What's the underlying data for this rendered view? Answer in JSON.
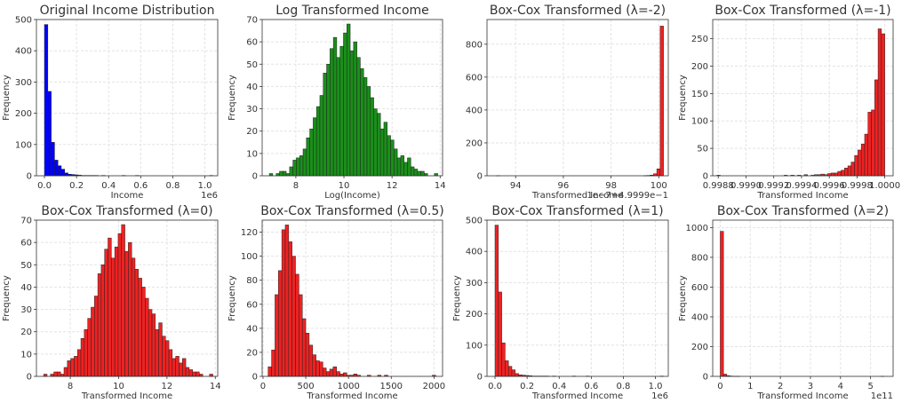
{
  "chart_data": [
    {
      "type": "bar",
      "title": "Original Income Distribution",
      "xlabel": "Income",
      "ylabel": "Frequency",
      "x_offset_label": "1e6",
      "color": "#0000ff",
      "xlim": [
        -0.05,
        1.08
      ],
      "ylim": [
        0,
        500
      ],
      "xticks": [
        {
          "v": 0.0,
          "t": "0.0"
        },
        {
          "v": 0.2,
          "t": "0.2"
        },
        {
          "v": 0.4,
          "t": "0.4"
        },
        {
          "v": 0.6,
          "t": "0.6"
        },
        {
          "v": 0.8,
          "t": "0.8"
        },
        {
          "v": 1.0,
          "t": "1.0"
        }
      ],
      "yticks": [
        {
          "v": 0,
          "t": "0"
        },
        {
          "v": 100,
          "t": "100"
        },
        {
          "v": 200,
          "t": "200"
        },
        {
          "v": 300,
          "t": "300"
        },
        {
          "v": 400,
          "t": "400"
        },
        {
          "v": 500,
          "t": "500"
        }
      ],
      "grid": true,
      "bin_start": 0.0,
      "bin_width": 0.021,
      "counts": [
        484,
        270,
        107,
        50,
        32,
        21,
        9,
        5,
        4,
        3,
        2,
        1,
        1,
        1,
        1,
        1,
        0,
        1,
        0,
        0,
        0,
        0,
        0,
        1,
        0,
        0,
        0,
        1,
        0,
        0,
        0,
        0,
        0,
        0,
        0,
        0,
        0,
        0,
        0,
        0,
        0,
        0,
        0,
        0,
        0,
        0,
        0,
        0,
        0,
        1
      ]
    },
    {
      "type": "bar",
      "title": "Log Transformed Income",
      "xlabel": "Log(Income)",
      "ylabel": "Frequency",
      "color": "#1a8f1a",
      "xlim": [
        6.6,
        14.1
      ],
      "ylim": [
        0,
        70
      ],
      "xticks": [
        {
          "v": 8,
          "t": "8"
        },
        {
          "v": 10,
          "t": "10"
        },
        {
          "v": 12,
          "t": "12"
        },
        {
          "v": 14,
          "t": "14"
        }
      ],
      "yticks": [
        {
          "v": 0,
          "t": "0"
        },
        {
          "v": 10,
          "t": "10"
        },
        {
          "v": 20,
          "t": "20"
        },
        {
          "v": 30,
          "t": "30"
        },
        {
          "v": 40,
          "t": "40"
        },
        {
          "v": 50,
          "t": "50"
        },
        {
          "v": 60,
          "t": "60"
        },
        {
          "v": 70,
          "t": "70"
        }
      ],
      "grid": true,
      "bin_start": 6.9,
      "bin_width": 0.14,
      "counts": [
        1,
        0,
        1,
        2,
        2,
        1,
        4,
        7,
        8,
        9,
        12,
        17,
        21,
        26,
        31,
        36,
        46,
        50,
        57,
        62,
        53,
        58,
        64,
        68,
        56,
        60,
        53,
        48,
        44,
        40,
        35,
        30,
        28,
        21,
        24,
        18,
        16,
        12,
        8,
        9,
        6,
        8,
        4,
        3,
        2,
        2,
        1,
        0,
        0,
        1
      ]
    },
    {
      "type": "bar",
      "title": "Box-Cox Transformed (λ=-2)",
      "xlabel": "Transformed Income",
      "ylabel": "",
      "x_offset_label": "1e−7+4.9999e−1",
      "color": "#ee2222",
      "xlim": [
        92.8,
        100.4
      ],
      "ylim": [
        0,
        950
      ],
      "xticks": [
        {
          "v": 94,
          "t": "94"
        },
        {
          "v": 96,
          "t": "96"
        },
        {
          "v": 98,
          "t": "98"
        },
        {
          "v": 100,
          "t": "100"
        }
      ],
      "yticks": [
        {
          "v": 0,
          "t": "0"
        },
        {
          "v": 200,
          "t": "200"
        },
        {
          "v": 400,
          "t": "400"
        },
        {
          "v": 600,
          "t": "600"
        },
        {
          "v": 800,
          "t": "800"
        }
      ],
      "grid": true,
      "bin_start": 93.2,
      "bin_width": 0.14,
      "counts": [
        1,
        0,
        0,
        0,
        0,
        0,
        0,
        0,
        0,
        0,
        0,
        0,
        0,
        0,
        0,
        0,
        0,
        0,
        0,
        0,
        0,
        0,
        0,
        0,
        0,
        0,
        0,
        0,
        0,
        0,
        0,
        0,
        0,
        0,
        0,
        0,
        0,
        0,
        0,
        0,
        0,
        0,
        0,
        0,
        1,
        2,
        4,
        12,
        42,
        910
      ]
    },
    {
      "type": "bar",
      "title": "Box-Cox Transformed (λ=-1)",
      "xlabel": "Transformed Income",
      "ylabel": "Frequency",
      "color": "#ee2222",
      "xlim": [
        0.99876,
        1.00006
      ],
      "ylim": [
        0,
        285
      ],
      "xticks": [
        {
          "v": 0.9988,
          "t": "0.9988"
        },
        {
          "v": 0.999,
          "t": "0.9990"
        },
        {
          "v": 0.9992,
          "t": "0.9992"
        },
        {
          "v": 0.9994,
          "t": "0.9994"
        },
        {
          "v": 0.9996,
          "t": "0.9996"
        },
        {
          "v": 0.9998,
          "t": "0.9998"
        },
        {
          "v": 1.0,
          "t": "1.0000"
        }
      ],
      "yticks": [
        {
          "v": 0,
          "t": "0"
        },
        {
          "v": 50,
          "t": "50"
        },
        {
          "v": 100,
          "t": "100"
        },
        {
          "v": 150,
          "t": "150"
        },
        {
          "v": 200,
          "t": "200"
        },
        {
          "v": 250,
          "t": "250"
        }
      ],
      "grid": true,
      "bin_start": 0.99879,
      "bin_width": 2.42e-05,
      "counts": [
        1,
        0,
        0,
        0,
        0,
        0,
        0,
        0,
        0,
        0,
        0,
        0,
        0,
        0,
        0,
        0,
        0,
        0,
        0,
        0,
        1,
        0,
        1,
        0,
        1,
        0,
        2,
        0,
        1,
        2,
        2,
        3,
        2,
        4,
        5,
        5,
        8,
        10,
        14,
        18,
        25,
        37,
        47,
        58,
        76,
        116,
        120,
        175,
        268,
        259
      ]
    },
    {
      "type": "bar",
      "title": "Box-Cox Transformed (λ=0)",
      "xlabel": "Transformed Income",
      "ylabel": "Frequency",
      "color": "#ee2222",
      "xlim": [
        6.6,
        14.1
      ],
      "ylim": [
        0,
        70
      ],
      "xticks": [
        {
          "v": 8,
          "t": "8"
        },
        {
          "v": 10,
          "t": "10"
        },
        {
          "v": 12,
          "t": "12"
        },
        {
          "v": 14,
          "t": "14"
        }
      ],
      "yticks": [
        {
          "v": 0,
          "t": "0"
        },
        {
          "v": 10,
          "t": "10"
        },
        {
          "v": 20,
          "t": "20"
        },
        {
          "v": 30,
          "t": "30"
        },
        {
          "v": 40,
          "t": "40"
        },
        {
          "v": 50,
          "t": "50"
        },
        {
          "v": 60,
          "t": "60"
        },
        {
          "v": 70,
          "t": "70"
        }
      ],
      "grid": true,
      "bin_start": 6.9,
      "bin_width": 0.14,
      "counts": [
        1,
        0,
        1,
        2,
        2,
        1,
        4,
        7,
        8,
        9,
        12,
        17,
        21,
        26,
        31,
        36,
        46,
        50,
        57,
        62,
        53,
        58,
        64,
        68,
        56,
        60,
        53,
        48,
        44,
        40,
        35,
        30,
        28,
        21,
        24,
        18,
        16,
        12,
        8,
        9,
        6,
        8,
        4,
        3,
        2,
        2,
        1,
        0,
        0,
        1
      ]
    },
    {
      "type": "bar",
      "title": "Box-Cox Transformed (λ=0.5)",
      "xlabel": "Transformed Income",
      "ylabel": "Frequency",
      "color": "#ee2222",
      "xlim": [
        -10,
        2100
      ],
      "ylim": [
        0,
        130
      ],
      "xticks": [
        {
          "v": 0,
          "t": "0"
        },
        {
          "v": 500,
          "t": "500"
        },
        {
          "v": 1000,
          "t": "1000"
        },
        {
          "v": 1500,
          "t": "1500"
        },
        {
          "v": 2000,
          "t": "2000"
        }
      ],
      "yticks": [
        {
          "v": 0,
          "t": "0"
        },
        {
          "v": 20,
          "t": "20"
        },
        {
          "v": 40,
          "t": "40"
        },
        {
          "v": 60,
          "t": "60"
        },
        {
          "v": 80,
          "t": "80"
        },
        {
          "v": 100,
          "t": "100"
        },
        {
          "v": 120,
          "t": "120"
        }
      ],
      "grid": true,
      "bin_start": 60,
      "bin_width": 40,
      "counts": [
        8,
        22,
        68,
        88,
        122,
        126,
        112,
        100,
        85,
        68,
        48,
        36,
        26,
        18,
        13,
        12,
        7,
        4,
        6,
        8,
        4,
        2,
        3,
        1,
        1,
        2,
        1,
        0,
        0,
        1,
        0,
        0,
        1,
        0,
        1,
        0,
        0,
        0,
        0,
        0,
        0,
        0,
        0,
        0,
        0,
        0,
        0,
        0,
        1
      ]
    },
    {
      "type": "bar",
      "title": "Box-Cox Transformed (λ=1)",
      "xlabel": "Transformed Income",
      "ylabel": "Frequency",
      "x_offset_label": "1e6",
      "color": "#ee2222",
      "xlim": [
        -0.05,
        1.08
      ],
      "ylim": [
        0,
        500
      ],
      "xticks": [
        {
          "v": 0.0,
          "t": "0.0"
        },
        {
          "v": 0.2,
          "t": "0.2"
        },
        {
          "v": 0.4,
          "t": "0.4"
        },
        {
          "v": 0.6,
          "t": "0.6"
        },
        {
          "v": 0.8,
          "t": "0.8"
        },
        {
          "v": 1.0,
          "t": "1.0"
        }
      ],
      "yticks": [
        {
          "v": 0,
          "t": "0"
        },
        {
          "v": 100,
          "t": "100"
        },
        {
          "v": 200,
          "t": "200"
        },
        {
          "v": 300,
          "t": "300"
        },
        {
          "v": 400,
          "t": "400"
        },
        {
          "v": 500,
          "t": "500"
        }
      ],
      "grid": true,
      "bin_start": 0.0,
      "bin_width": 0.021,
      "counts": [
        484,
        270,
        107,
        50,
        32,
        21,
        9,
        5,
        4,
        3,
        2,
        1,
        1,
        1,
        1,
        1,
        0,
        1,
        0,
        0,
        0,
        0,
        0,
        1,
        0,
        0,
        0,
        1,
        0,
        0,
        0,
        0,
        0,
        0,
        0,
        0,
        0,
        0,
        0,
        0,
        0,
        0,
        0,
        0,
        0,
        0,
        0,
        0,
        0,
        1
      ]
    },
    {
      "type": "bar",
      "title": "Box-Cox Transformed (λ=2)",
      "xlabel": "Transformed Income",
      "ylabel": "Frequency",
      "x_offset_label": "1e11",
      "color": "#ee2222",
      "xlim": [
        -0.25,
        5.75
      ],
      "ylim": [
        0,
        1050
      ],
      "xticks": [
        {
          "v": 0,
          "t": "0"
        },
        {
          "v": 1,
          "t": "1"
        },
        {
          "v": 2,
          "t": "2"
        },
        {
          "v": 3,
          "t": "3"
        },
        {
          "v": 4,
          "t": "4"
        },
        {
          "v": 5,
          "t": "5"
        }
      ],
      "yticks": [
        {
          "v": 0,
          "t": "0"
        },
        {
          "v": 200,
          "t": "200"
        },
        {
          "v": 400,
          "t": "400"
        },
        {
          "v": 600,
          "t": "600"
        },
        {
          "v": 800,
          "t": "800"
        },
        {
          "v": 1000,
          "t": "1000"
        }
      ],
      "grid": true,
      "bin_start": 0.0,
      "bin_width": 0.109,
      "counts": [
        975,
        15,
        5,
        2,
        1,
        1,
        0,
        0,
        0,
        0,
        0,
        0,
        0,
        0,
        0,
        0,
        0,
        0,
        0,
        0,
        0,
        0,
        0,
        0,
        0,
        0,
        0,
        0,
        0,
        0,
        0,
        0,
        0,
        0,
        0,
        0,
        0,
        0,
        0,
        0,
        0,
        0,
        0,
        0,
        0,
        0,
        0,
        0,
        0,
        1
      ]
    }
  ]
}
